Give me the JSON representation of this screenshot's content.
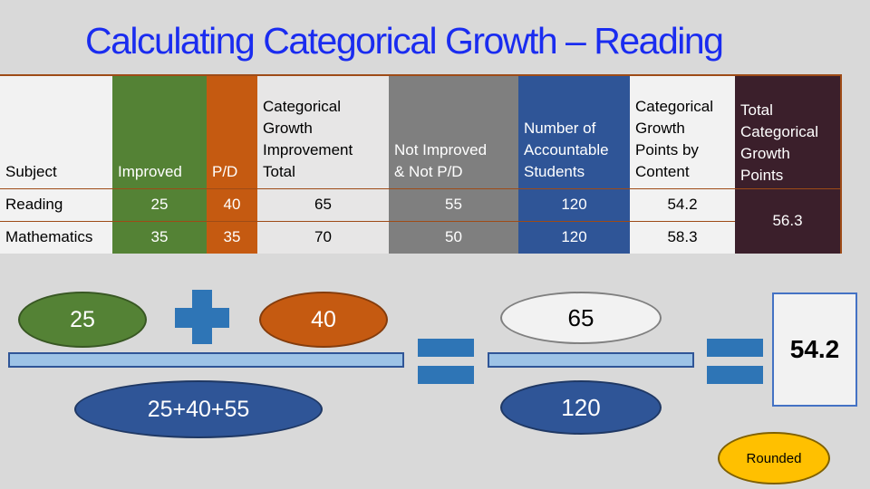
{
  "title": "Calculating Categorical Growth – Reading",
  "table": {
    "headers": {
      "subject": "Subject",
      "improved": "Improved",
      "pd": "P/D",
      "cg_improvement_total": [
        "Categorical",
        "Growth",
        "Improvement",
        "Total"
      ],
      "not_improved": [
        "Not Improved",
        "& Not P/D"
      ],
      "accountable": [
        "Number of",
        "Accountable",
        "Students"
      ],
      "cg_points_content": [
        "Categorical",
        "Growth",
        "Points by",
        "Content"
      ],
      "total_cg_points": [
        "Total",
        "Categorical",
        "Growth",
        "Points"
      ]
    },
    "rows": [
      {
        "subject": "Reading",
        "improved": "25",
        "pd": "40",
        "cg_total": "65",
        "not_improved": "55",
        "accountable": "120",
        "points": "54.2"
      },
      {
        "subject": "Mathematics",
        "improved": "35",
        "pd": "35",
        "cg_total": "70",
        "not_improved": "50",
        "accountable": "120",
        "points": "58.3"
      }
    ],
    "total_points": "56.3"
  },
  "calc": {
    "improved": "25",
    "pd": "40",
    "denominator_expr": "25+40+55",
    "numerator": "65",
    "denominator": "120",
    "result": "54.2",
    "rounded_label": "Rounded"
  },
  "colors": {
    "title": "#1a2cf0",
    "improved": "#548235",
    "pd": "#c55a11",
    "not_improved": "#7f7f7f",
    "accountable": "#2f5597",
    "total": "#3b1f2b",
    "operator": "#2e75b6",
    "rounded": "#ffc000"
  }
}
